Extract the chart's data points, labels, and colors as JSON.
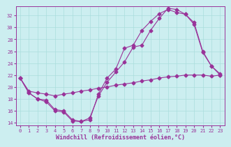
{
  "xlabel": "Windchill (Refroidissement éolien,°C)",
  "bg_color": "#cceef0",
  "grid_color": "#aadddd",
  "line_color": "#993399",
  "xlim": [
    -0.5,
    23.5
  ],
  "ylim": [
    13.5,
    33.5
  ],
  "xticks": [
    0,
    1,
    2,
    3,
    4,
    5,
    6,
    7,
    8,
    9,
    10,
    11,
    12,
    13,
    14,
    15,
    16,
    17,
    18,
    19,
    20,
    21,
    22,
    23
  ],
  "yticks": [
    14,
    16,
    18,
    20,
    22,
    24,
    26,
    28,
    30,
    32
  ],
  "curve1_x": [
    0,
    1,
    2,
    3,
    4,
    5,
    6,
    7,
    8,
    9,
    10,
    11,
    12,
    13,
    14,
    15,
    16,
    17,
    18,
    19,
    20,
    21,
    22,
    23
  ],
  "curve1_y": [
    21.5,
    19.0,
    18.0,
    17.5,
    16.0,
    15.8,
    14.3,
    14.2,
    14.5,
    18.8,
    21.5,
    23.0,
    26.5,
    27.0,
    29.5,
    31.0,
    32.3,
    33.0,
    32.5,
    32.2,
    30.5,
    25.8,
    23.5,
    22.0
  ],
  "curve2_x": [
    0,
    1,
    2,
    3,
    4,
    5,
    6,
    7,
    8,
    9,
    10,
    11,
    12,
    13,
    14,
    15,
    16,
    17,
    18,
    19,
    20,
    21,
    22,
    23
  ],
  "curve2_y": [
    21.5,
    19.0,
    18.0,
    17.8,
    16.2,
    16.0,
    14.5,
    14.2,
    14.8,
    18.5,
    20.8,
    22.5,
    24.2,
    26.7,
    27.0,
    29.5,
    31.5,
    33.2,
    33.0,
    32.2,
    30.8,
    26.0,
    23.5,
    22.2
  ],
  "curve3_x": [
    0,
    1,
    2,
    3,
    4,
    5,
    6,
    7,
    8,
    9,
    10,
    11,
    12,
    13,
    14,
    15,
    16,
    17,
    18,
    19,
    20,
    21,
    22,
    23
  ],
  "curve3_y": [
    21.5,
    19.3,
    19.0,
    18.8,
    18.5,
    18.8,
    19.0,
    19.3,
    19.5,
    19.8,
    20.0,
    20.3,
    20.5,
    20.7,
    21.0,
    21.2,
    21.5,
    21.7,
    21.8,
    22.0,
    22.0,
    22.0,
    21.8,
    22.0
  ],
  "marker": "D",
  "markersize": 2.5,
  "linewidth": 0.8,
  "tick_fontsize": 5.0,
  "xlabel_fontsize": 6.0
}
